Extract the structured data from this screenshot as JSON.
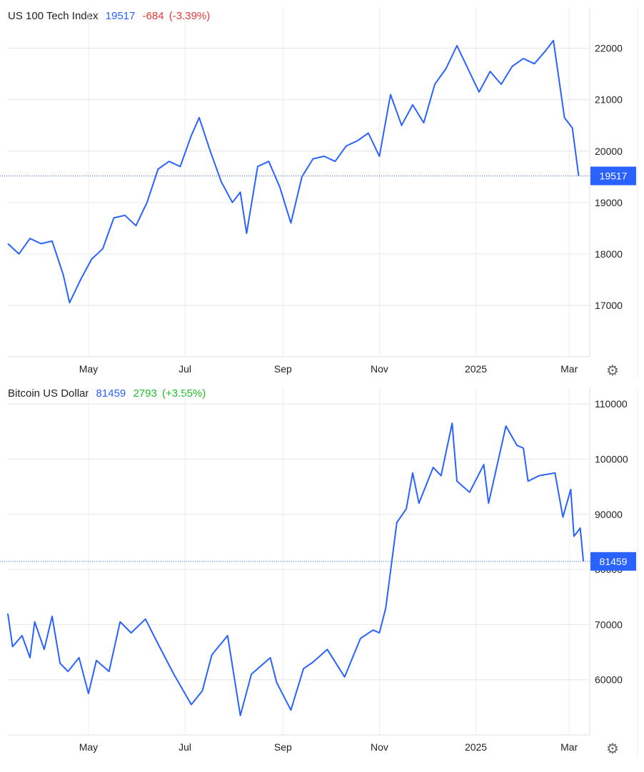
{
  "charts": [
    {
      "name": "US 100 Tech Index",
      "last": "19517",
      "change": "-684",
      "change_pct": "(-3.39%)",
      "change_color": "#e53935",
      "series_color": "#2962ff",
      "settings_icon": "gear-icon"
    },
    {
      "name": "Bitcoin US Dollar",
      "last": "81459",
      "change": "2793",
      "change_pct": "(+3.55%)",
      "change_color": "#1fbf2a",
      "series_color": "#2962ff",
      "settings_icon": "gear-icon"
    }
  ],
  "chart_data": [
    {
      "type": "line",
      "title": "US 100 Tech Index",
      "series": [
        {
          "name": "US 100 Tech Index",
          "x": [
            "2024-03-11",
            "2024-03-18",
            "2024-03-25",
            "2024-04-01",
            "2024-04-08",
            "2024-04-15",
            "2024-04-19",
            "2024-04-26",
            "2024-05-03",
            "2024-05-10",
            "2024-05-17",
            "2024-05-24",
            "2024-05-31",
            "2024-06-07",
            "2024-06-14",
            "2024-06-21",
            "2024-06-28",
            "2024-07-05",
            "2024-07-10",
            "2024-07-17",
            "2024-07-24",
            "2024-07-31",
            "2024-08-05",
            "2024-08-09",
            "2024-08-16",
            "2024-08-23",
            "2024-08-30",
            "2024-09-06",
            "2024-09-13",
            "2024-09-20",
            "2024-09-27",
            "2024-10-04",
            "2024-10-11",
            "2024-10-18",
            "2024-10-25",
            "2024-11-01",
            "2024-11-08",
            "2024-11-15",
            "2024-11-22",
            "2024-11-29",
            "2024-12-06",
            "2024-12-13",
            "2024-12-20",
            "2024-12-27",
            "2025-01-03",
            "2025-01-10",
            "2025-01-17",
            "2025-01-24",
            "2025-01-31",
            "2025-02-07",
            "2025-02-14",
            "2025-02-19",
            "2025-02-26",
            "2025-03-03",
            "2025-03-07"
          ],
          "y": [
            18200,
            18000,
            18300,
            18200,
            18250,
            17600,
            17050,
            17500,
            17900,
            18100,
            18700,
            18750,
            18550,
            19000,
            19650,
            19800,
            19700,
            20300,
            20650,
            20000,
            19400,
            19000,
            19200,
            18400,
            19700,
            19800,
            19300,
            18600,
            19500,
            19850,
            19900,
            19800,
            20100,
            20200,
            20350,
            19900,
            21100,
            20500,
            20900,
            20550,
            21300,
            21600,
            22050,
            21600,
            21150,
            21550,
            21300,
            21650,
            21800,
            21700,
            21950,
            22150,
            20650,
            20450,
            19517
          ]
        }
      ],
      "yticks": [
        17000,
        18000,
        19000,
        20000,
        21000,
        22000
      ],
      "ylim": [
        16000,
        22800
      ],
      "xticks": [
        {
          "label": "May",
          "date": "2024-05-01"
        },
        {
          "label": "Jul",
          "date": "2024-07-01"
        },
        {
          "label": "Sep",
          "date": "2024-09-01"
        },
        {
          "label": "Nov",
          "date": "2024-11-01"
        },
        {
          "label": "2025",
          "date": "2025-01-01"
        },
        {
          "label": "Mar",
          "date": "2025-03-01"
        }
      ],
      "xlim": [
        "2024-03-11",
        "2025-03-14"
      ],
      "last_value": 19517,
      "grid": true
    },
    {
      "type": "line",
      "title": "Bitcoin US Dollar",
      "series": [
        {
          "name": "Bitcoin US Dollar",
          "x": [
            "2024-03-11",
            "2024-03-14",
            "2024-03-20",
            "2024-03-25",
            "2024-03-28",
            "2024-04-03",
            "2024-04-08",
            "2024-04-13",
            "2024-04-18",
            "2024-04-25",
            "2024-05-01",
            "2024-05-06",
            "2024-05-14",
            "2024-05-21",
            "2024-05-28",
            "2024-06-06",
            "2024-06-14",
            "2024-06-24",
            "2024-07-05",
            "2024-07-12",
            "2024-07-18",
            "2024-07-28",
            "2024-08-05",
            "2024-08-12",
            "2024-08-24",
            "2024-08-28",
            "2024-09-06",
            "2024-09-14",
            "2024-09-20",
            "2024-09-29",
            "2024-10-10",
            "2024-10-20",
            "2024-10-28",
            "2024-11-01",
            "2024-11-05",
            "2024-11-12",
            "2024-11-18",
            "2024-11-22",
            "2024-11-26",
            "2024-12-05",
            "2024-12-10",
            "2024-12-17",
            "2024-12-20",
            "2024-12-28",
            "2025-01-06",
            "2025-01-09",
            "2025-01-20",
            "2025-01-27",
            "2025-01-31",
            "2025-02-03",
            "2025-02-10",
            "2025-02-20",
            "2025-02-25",
            "2025-03-02",
            "2025-03-04",
            "2025-03-08",
            "2025-03-10"
          ],
          "y": [
            72000,
            66000,
            68000,
            64000,
            70500,
            65500,
            71500,
            63000,
            61500,
            64000,
            57500,
            63500,
            61500,
            70500,
            68500,
            71000,
            66500,
            61000,
            55500,
            58000,
            64500,
            68000,
            53500,
            61000,
            64000,
            59500,
            54500,
            62000,
            63200,
            65500,
            60500,
            67500,
            69000,
            68500,
            73000,
            88500,
            91000,
            97500,
            92000,
            98500,
            97000,
            106500,
            96000,
            94000,
            99000,
            92000,
            106000,
            102500,
            102000,
            96000,
            97000,
            97500,
            89500,
            94500,
            86000,
            87500,
            81459
          ]
        }
      ],
      "yticks": [
        60000,
        70000,
        80000,
        90000,
        100000,
        110000
      ],
      "ylim": [
        50000,
        113000
      ],
      "xticks": [
        {
          "label": "May",
          "date": "2024-05-01"
        },
        {
          "label": "Jul",
          "date": "2024-07-01"
        },
        {
          "label": "Sep",
          "date": "2024-09-01"
        },
        {
          "label": "Nov",
          "date": "2024-11-01"
        },
        {
          "label": "2025",
          "date": "2025-01-01"
        },
        {
          "label": "Mar",
          "date": "2025-03-01"
        }
      ],
      "xlim": [
        "2024-03-11",
        "2025-03-14"
      ],
      "last_value": 81459,
      "grid": true
    }
  ]
}
